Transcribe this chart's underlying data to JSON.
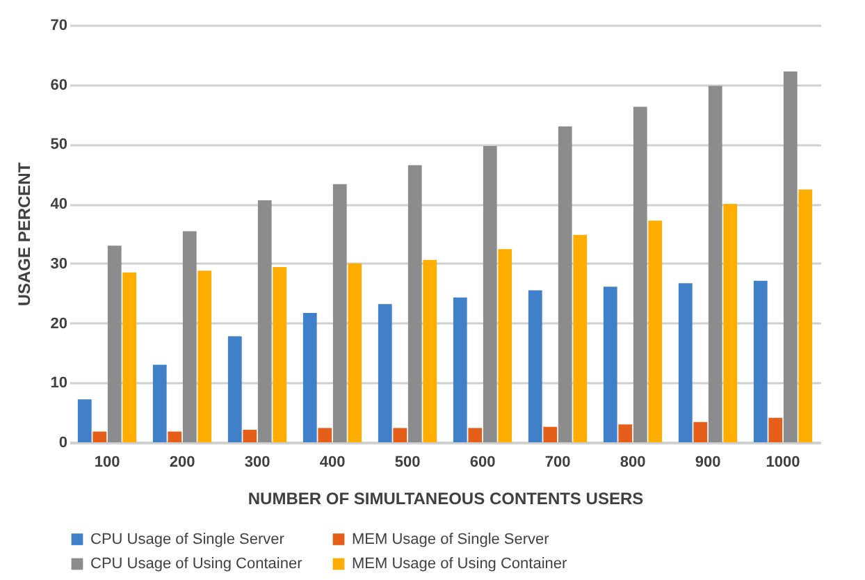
{
  "chart_data": {
    "type": "bar",
    "xlabel": "NUMBER OF SIMULTANEOUS CONTENTS USERS",
    "ylabel": "USAGE PERCENT",
    "categories": [
      "100",
      "200",
      "300",
      "400",
      "500",
      "600",
      "700",
      "800",
      "900",
      "1000"
    ],
    "series": [
      {
        "name": "CPU Usage of Single Server",
        "color": "#4080c8",
        "values": [
          7.2,
          13,
          17.8,
          21.7,
          23.2,
          24.3,
          25.5,
          26.1,
          26.7,
          27.1
        ]
      },
      {
        "name": "MEM Usage of Single Server",
        "color": "#e55e1a",
        "values": [
          1.8,
          1.8,
          2.1,
          2.4,
          2.4,
          2.4,
          2.6,
          3.0,
          3.4,
          4.1
        ]
      },
      {
        "name": "CPU Usage of Using Container",
        "color": "#8c8c8c",
        "values": [
          33,
          35.4,
          40.6,
          43.3,
          46.5,
          49.7,
          53.0,
          56.3,
          59.8,
          62.2
        ]
      },
      {
        "name": "MEM Usage of Using Container",
        "color": "#ffad00",
        "values": [
          28.5,
          28.8,
          29.4,
          30,
          30.6,
          32.4,
          34.8,
          37.2,
          40,
          42.4
        ]
      }
    ],
    "ylim": [
      0,
      70
    ],
    "yticks": [
      0,
      10,
      20,
      30,
      40,
      50,
      60,
      70
    ],
    "grid": "y",
    "legend": "bottom"
  }
}
